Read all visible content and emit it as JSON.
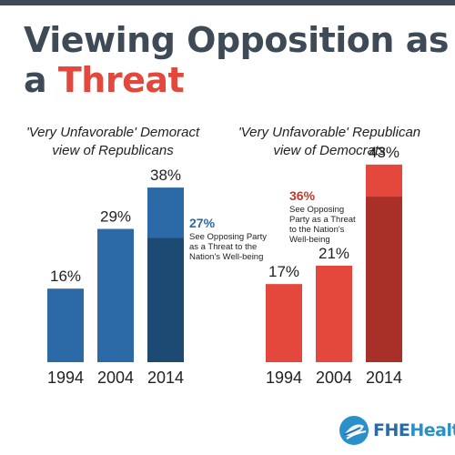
{
  "title": {
    "line1": "Viewing Opposition as",
    "line2_prefix": "a",
    "line2_highlight": "Threat"
  },
  "brand": {
    "part1": "FHE",
    "part2": "Health"
  },
  "colors": {
    "title": "#3f4a57",
    "highlight": "#e4473c",
    "dem_bar": "#2b6aa6",
    "dem_overlay": "#1d4a73",
    "rep_bar": "#e4473c",
    "rep_overlay": "#a93029"
  },
  "chart_data": [
    {
      "type": "bar",
      "title": "'Very Unfavorable' Demoract view of Republicans",
      "categories": [
        "1994",
        "2004",
        "2014"
      ],
      "values": [
        16,
        29,
        38
      ],
      "value_labels": [
        "16%",
        "29%",
        "38%"
      ],
      "overlay": {
        "category": "2014",
        "value": 27,
        "label": "27%",
        "note": [
          "See Opposing Party",
          "as a Threat to the",
          "Nation's Well-being"
        ]
      },
      "ylim": [
        0,
        45
      ],
      "grid": false,
      "legend": "none"
    },
    {
      "type": "bar",
      "title": "'Very Unfavorable' Republican view of Democrats",
      "categories": [
        "1994",
        "2004",
        "2014"
      ],
      "values": [
        17,
        21,
        43
      ],
      "value_labels": [
        "17%",
        "21%",
        "43%"
      ],
      "overlay": {
        "category": "2014",
        "value": 36,
        "label": "36%",
        "note": [
          "See Opposing",
          "Party as a Threat",
          "to the Nation's",
          "Well-being"
        ]
      },
      "ylim": [
        0,
        45
      ],
      "grid": false,
      "legend": "none"
    }
  ]
}
